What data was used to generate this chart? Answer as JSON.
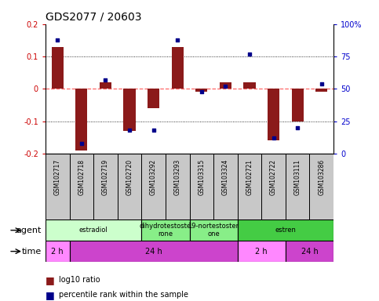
{
  "title": "GDS2077 / 20603",
  "samples": [
    "GSM102717",
    "GSM102718",
    "GSM102719",
    "GSM102720",
    "GSM103292",
    "GSM103293",
    "GSM103315",
    "GSM103324",
    "GSM102721",
    "GSM102722",
    "GSM103111",
    "GSM103286"
  ],
  "log10_ratio": [
    0.13,
    -0.19,
    0.02,
    -0.13,
    -0.06,
    0.13,
    -0.01,
    0.02,
    0.02,
    -0.16,
    -0.1,
    -0.01
  ],
  "percentile_rank": [
    88,
    8,
    57,
    18,
    18,
    88,
    48,
    52,
    77,
    12,
    20,
    54
  ],
  "ylim_left": [
    -0.2,
    0.2
  ],
  "ylim_right": [
    0,
    100
  ],
  "yticks_left": [
    -0.2,
    -0.1,
    0.0,
    0.1,
    0.2
  ],
  "yticks_right": [
    0,
    25,
    50,
    75,
    100
  ],
  "bar_color": "#8B1A1A",
  "dot_color": "#00008B",
  "zero_line_color": "#FF6666",
  "dotted_line_color": "#000000",
  "title_color": "#000000",
  "left_axis_color": "#CC0000",
  "right_axis_color": "#0000CC",
  "agent_groups": [
    {
      "label": "estradiol",
      "start": 0,
      "end": 4,
      "color": "#CCFFCC"
    },
    {
      "label": "dihydrotestoste\nrone",
      "start": 4,
      "end": 6,
      "color": "#88EE88"
    },
    {
      "label": "19-nortestoster\none",
      "start": 6,
      "end": 8,
      "color": "#88EE88"
    },
    {
      "label": "estren",
      "start": 8,
      "end": 12,
      "color": "#44CC44"
    }
  ],
  "time_groups": [
    {
      "label": "2 h",
      "start": 0,
      "end": 1,
      "color": "#FF88FF"
    },
    {
      "label": "24 h",
      "start": 1,
      "end": 8,
      "color": "#CC44CC"
    },
    {
      "label": "2 h",
      "start": 8,
      "end": 10,
      "color": "#FF88FF"
    },
    {
      "label": "24 h",
      "start": 10,
      "end": 12,
      "color": "#CC44CC"
    }
  ],
  "legend_bar_label": "log10 ratio",
  "legend_dot_label": "percentile rank within the sample",
  "tick_label_fontsize": 7,
  "title_fontsize": 10,
  "label_fontsize": 8,
  "sample_label_fontsize": 5.5
}
